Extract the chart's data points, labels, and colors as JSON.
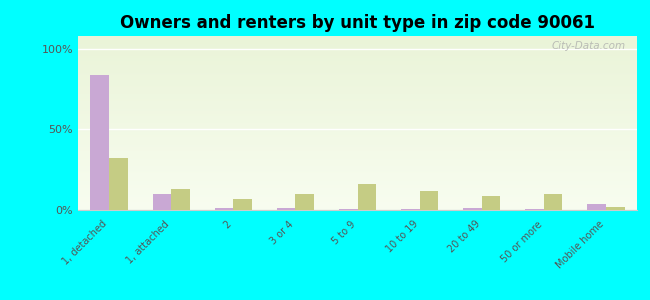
{
  "title": "Owners and renters by unit type in zip code 90061",
  "categories": [
    "1, detached",
    "1, attached",
    "2",
    "3 or 4",
    "5 to 9",
    "10 to 19",
    "20 to 49",
    "50 or more",
    "Mobile home"
  ],
  "owner_values": [
    84,
    10,
    1.5,
    1,
    0.5,
    0.5,
    1,
    0.5,
    3.5
  ],
  "renter_values": [
    32,
    13,
    7,
    10,
    16,
    12,
    9,
    10,
    2
  ],
  "owner_color": "#c9a8d4",
  "renter_color": "#c5cc84",
  "background_color": "#00ffff",
  "plot_bg_top": "#eaf4d8",
  "plot_bg_bottom": "#f8fdf0",
  "ylabel_ticks": [
    "0%",
    "50%",
    "100%"
  ],
  "ytick_vals": [
    0,
    50,
    100
  ],
  "ylim": [
    0,
    108
  ],
  "bar_width": 0.3,
  "watermark": "City-Data.com"
}
